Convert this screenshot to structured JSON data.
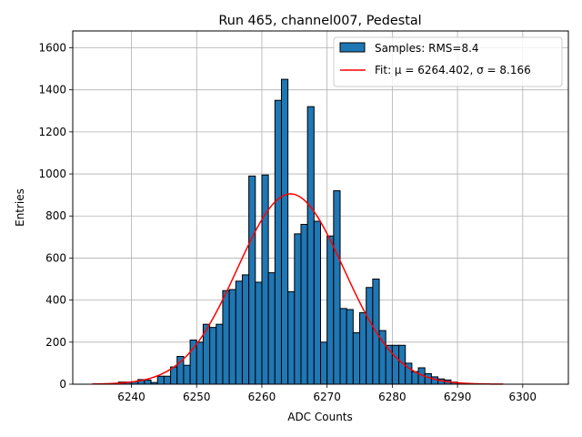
{
  "chart_data": {
    "type": "bar",
    "title": "Run 465, channel007, Pedestal",
    "xlabel": "ADC Counts",
    "ylabel": "Entries",
    "xlim": [
      6231,
      6307
    ],
    "ylim": [
      0,
      1680
    ],
    "xticks": [
      6240,
      6250,
      6260,
      6270,
      6280,
      6290,
      6300
    ],
    "yticks": [
      0,
      200,
      400,
      600,
      800,
      1000,
      1200,
      1400,
      1600
    ],
    "grid": true,
    "legend_position": "top-right",
    "bin_width": 1,
    "bins": [
      [
        6237,
        2
      ],
      [
        6238,
        10
      ],
      [
        6239,
        10
      ],
      [
        6240,
        12
      ],
      [
        6241,
        22
      ],
      [
        6242,
        20
      ],
      [
        6243,
        8
      ],
      [
        6244,
        38
      ],
      [
        6245,
        38
      ],
      [
        6246,
        82
      ],
      [
        6247,
        132
      ],
      [
        6248,
        90
      ],
      [
        6249,
        210
      ],
      [
        6250,
        200
      ],
      [
        6251,
        285
      ],
      [
        6252,
        270
      ],
      [
        6253,
        285
      ],
      [
        6254,
        445
      ],
      [
        6255,
        450
      ],
      [
        6256,
        490
      ],
      [
        6257,
        520
      ],
      [
        6258,
        990
      ],
      [
        6259,
        485
      ],
      [
        6260,
        995
      ],
      [
        6261,
        530
      ],
      [
        6262,
        1350
      ],
      [
        6263,
        1450
      ],
      [
        6264,
        440
      ],
      [
        6265,
        715
      ],
      [
        6266,
        760
      ],
      [
        6267,
        1320
      ],
      [
        6268,
        775
      ],
      [
        6269,
        200
      ],
      [
        6270,
        705
      ],
      [
        6271,
        920
      ],
      [
        6272,
        360
      ],
      [
        6273,
        355
      ],
      [
        6274,
        245
      ],
      [
        6275,
        340
      ],
      [
        6276,
        460
      ],
      [
        6277,
        500
      ],
      [
        6278,
        255
      ],
      [
        6279,
        185
      ],
      [
        6280,
        185
      ],
      [
        6281,
        185
      ],
      [
        6282,
        100
      ],
      [
        6283,
        60
      ],
      [
        6284,
        78
      ],
      [
        6285,
        50
      ],
      [
        6286,
        35
      ],
      [
        6287,
        25
      ],
      [
        6288,
        20
      ],
      [
        6289,
        10
      ],
      [
        6290,
        5
      ]
    ],
    "series": [
      {
        "name": "Samples: RMS=8.4",
        "kind": "histogram",
        "color": "#1f77b4",
        "edgecolor": "#000000"
      },
      {
        "name": "Fit: μ = 6264.402, σ = 8.166",
        "kind": "gaussian",
        "color": "#ff0000",
        "mu": 6264.402,
        "sigma": 8.166,
        "amplitude": 905,
        "x_range": [
          6234,
          6297
        ]
      }
    ]
  }
}
